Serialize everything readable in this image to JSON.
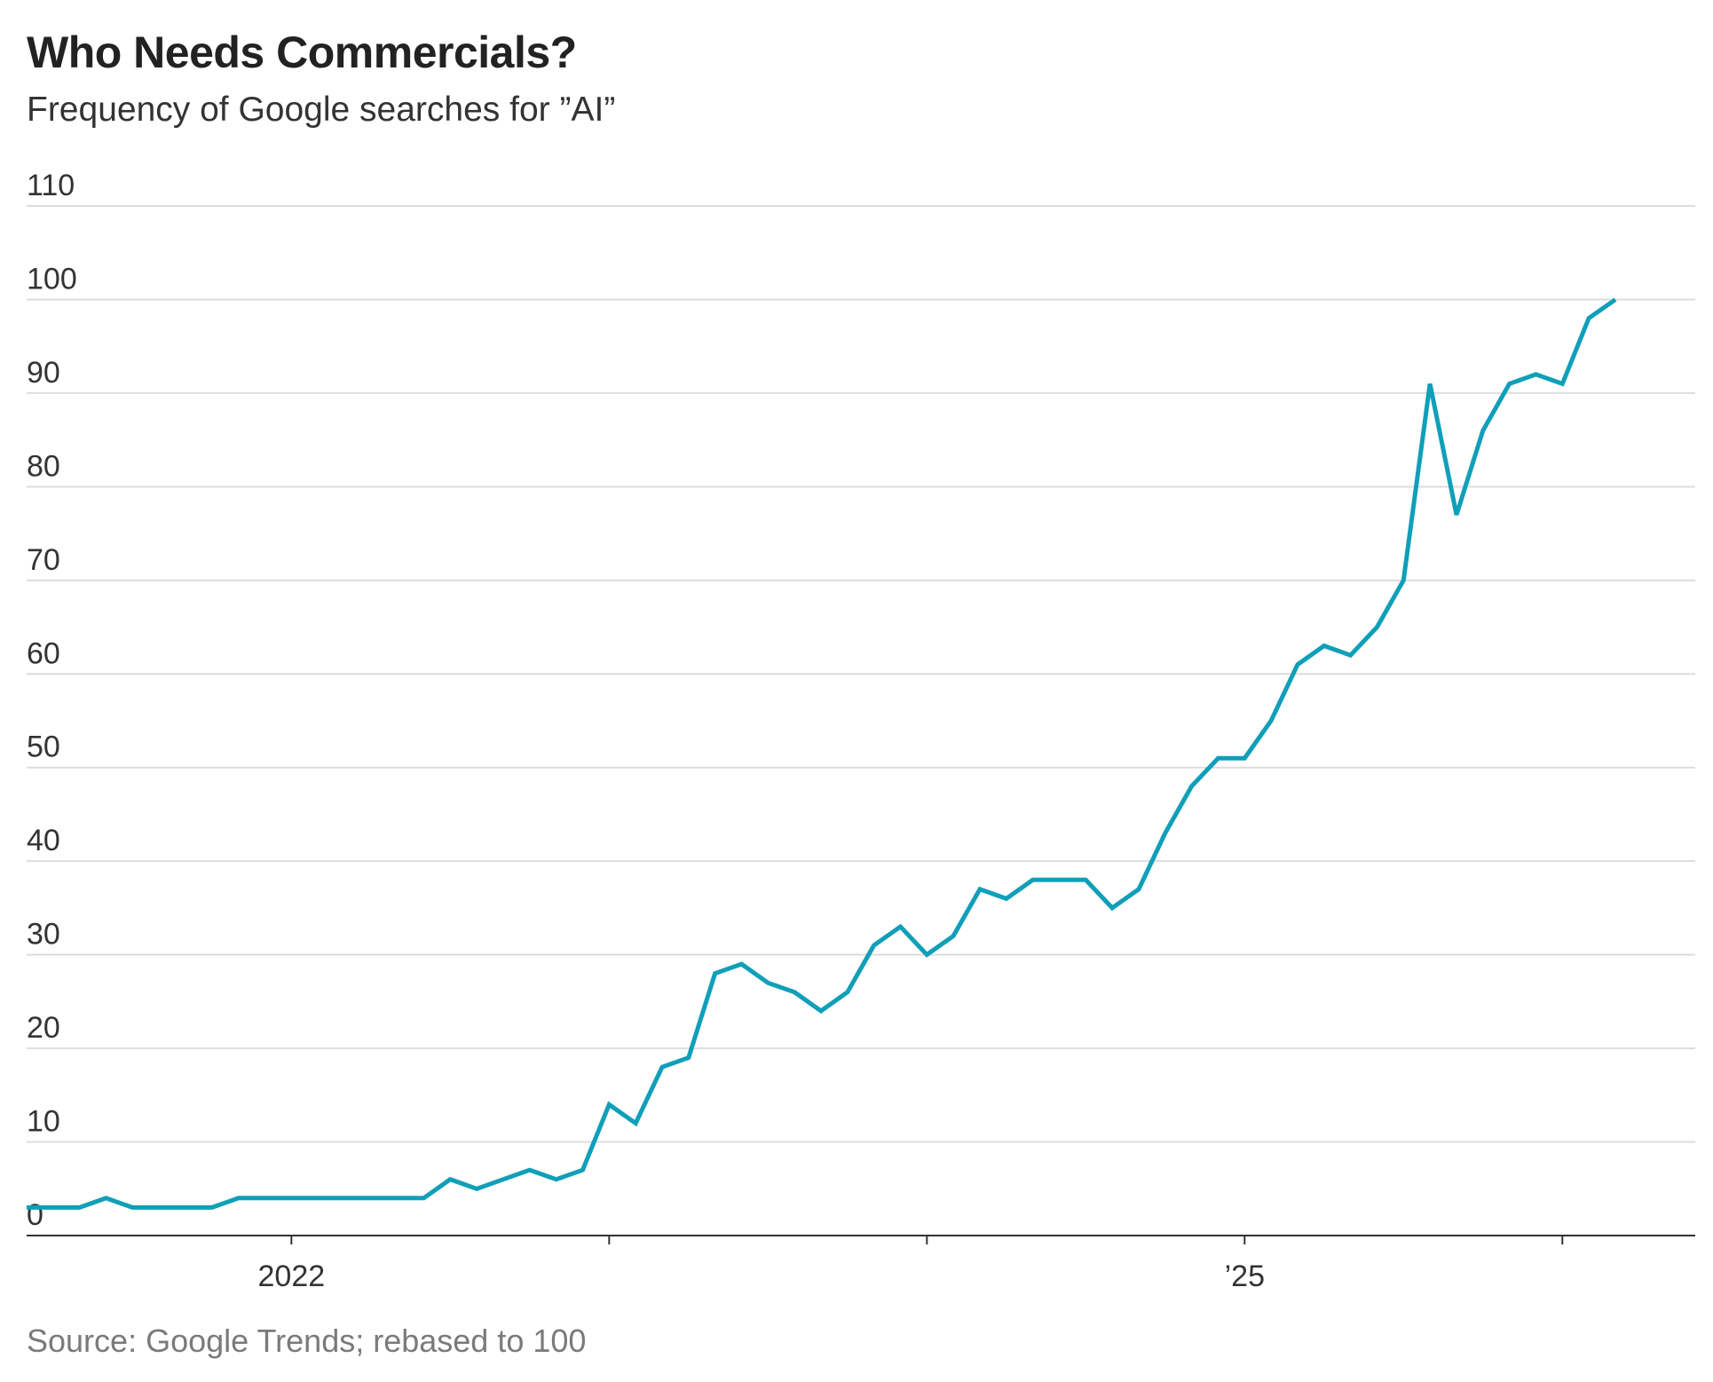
{
  "chart_data": {
    "type": "line",
    "title": "Who Needs Commercials?",
    "subtitle": "Frequency of Google searches for ”AI”",
    "source": "Source: Google Trends; rebased to 100",
    "ylim": [
      0,
      110
    ],
    "yticks": [
      0,
      10,
      20,
      30,
      40,
      50,
      60,
      70,
      80,
      90,
      100,
      110
    ],
    "ytick_labels": [
      "0",
      "10",
      "20",
      "30",
      "40",
      "50",
      "60",
      "70",
      "80",
      "90",
      "100",
      "110"
    ],
    "grid": true,
    "x_start": 0,
    "x_end": 62.75,
    "x_ticks": [
      10,
      22,
      34,
      46,
      58
    ],
    "x_tick_labels": [
      {
        "at": 10,
        "label": "2022"
      },
      {
        "at": 46,
        "label": "’25"
      }
    ],
    "line_color": "#109fb9",
    "series": [
      {
        "name": "AI",
        "values": [
          3,
          3,
          3,
          4,
          3,
          3,
          3,
          3,
          4,
          4,
          4,
          4,
          4,
          4,
          4,
          4,
          6,
          5,
          6,
          7,
          6,
          7,
          14,
          12,
          18,
          19,
          28,
          29,
          27,
          26,
          24,
          26,
          31,
          33,
          30,
          32,
          37,
          36,
          38,
          38,
          38,
          35,
          37,
          43,
          48,
          51,
          51,
          55,
          61,
          63,
          62,
          65,
          70,
          91,
          77,
          86,
          91,
          92,
          91,
          98,
          100
        ]
      }
    ]
  }
}
